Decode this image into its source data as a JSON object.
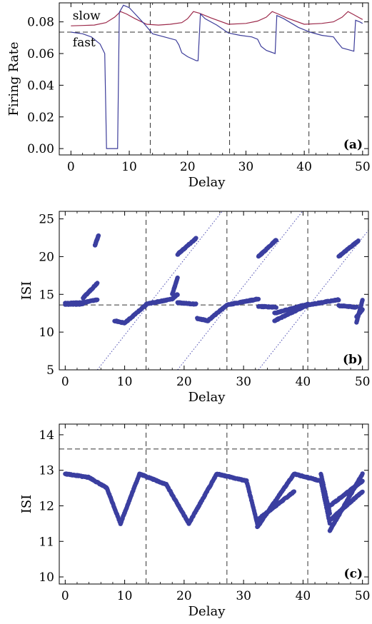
{
  "chart_data": [
    {
      "type": "line",
      "panel_label": "(a)",
      "xlabel": "Delay",
      "ylabel": "Firing  Rate",
      "xlim": [
        -2,
        51
      ],
      "ylim": [
        -0.004,
        0.092
      ],
      "xticks": [
        0,
        10,
        20,
        30,
        40,
        50
      ],
      "yticks": [
        0.0,
        0.02,
        0.04,
        0.06,
        0.08
      ],
      "ytick_labels": [
        "0.00",
        "0.02",
        "0.04",
        "0.06",
        "0.08"
      ],
      "hline": 0.0735,
      "vlines": [
        13.6,
        27.2,
        40.8
      ],
      "annotations": [
        {
          "text": "slow",
          "x": 0.3,
          "y": 0.0815
        },
        {
          "text": "fast",
          "x": 0.3,
          "y": 0.0645
        }
      ],
      "series": [
        {
          "name": "slow",
          "color": "#9c2a4b",
          "points": [
            [
              0,
              0.0775
            ],
            [
              2,
              0.0777
            ],
            [
              4,
              0.078
            ],
            [
              6,
              0.0795
            ],
            [
              7.5,
              0.083
            ],
            [
              8.5,
              0.0865
            ],
            [
              9.5,
              0.085
            ],
            [
              11,
              0.082
            ],
            [
              13,
              0.0785
            ],
            [
              15,
              0.078
            ],
            [
              17,
              0.0785
            ],
            [
              19,
              0.0795
            ],
            [
              20,
              0.082
            ],
            [
              21,
              0.0865
            ],
            [
              22,
              0.0855
            ],
            [
              24,
              0.0825
            ],
            [
              27,
              0.0785
            ],
            [
              30,
              0.079
            ],
            [
              32,
              0.0805
            ],
            [
              33.5,
              0.083
            ],
            [
              34.5,
              0.0865
            ],
            [
              35.5,
              0.085
            ],
            [
              37,
              0.0825
            ],
            [
              40,
              0.0785
            ],
            [
              43,
              0.079
            ],
            [
              45,
              0.08
            ],
            [
              46.5,
              0.083
            ],
            [
              47.5,
              0.0865
            ],
            [
              48.5,
              0.0845
            ],
            [
              49.5,
              0.0825
            ],
            [
              50,
              0.0815
            ]
          ]
        },
        {
          "name": "fast",
          "color": "#3d3d9a",
          "points": [
            [
              0,
              0.0735
            ],
            [
              2,
              0.0725
            ],
            [
              3.5,
              0.0705
            ],
            [
              5,
              0.066
            ],
            [
              5.8,
              0.06
            ],
            [
              6.1,
              0.0
            ],
            [
              8.0,
              0.0
            ],
            [
              8.3,
              0.086
            ],
            [
              9,
              0.0905
            ],
            [
              10,
              0.089
            ],
            [
              11,
              0.085
            ],
            [
              12.5,
              0.079
            ],
            [
              14,
              0.0725
            ],
            [
              16,
              0.0705
            ],
            [
              18,
              0.0685
            ],
            [
              18.5,
              0.0655
            ],
            [
              19,
              0.0605
            ],
            [
              20,
              0.058
            ],
            [
              21.5,
              0.0555
            ],
            [
              21.8,
              0.0555
            ],
            [
              22.2,
              0.085
            ],
            [
              23,
              0.082
            ],
            [
              25,
              0.078
            ],
            [
              27,
              0.073
            ],
            [
              29,
              0.0715
            ],
            [
              31,
              0.0705
            ],
            [
              32,
              0.069
            ],
            [
              32.6,
              0.0645
            ],
            [
              33.5,
              0.062
            ],
            [
              35,
              0.06
            ],
            [
              35.3,
              0.084
            ],
            [
              36.5,
              0.082
            ],
            [
              39,
              0.0765
            ],
            [
              41,
              0.0735
            ],
            [
              43,
              0.0715
            ],
            [
              45,
              0.0705
            ],
            [
              45.6,
              0.0675
            ],
            [
              46.5,
              0.0635
            ],
            [
              48,
              0.062
            ],
            [
              48.5,
              0.0615
            ],
            [
              48.8,
              0.081
            ],
            [
              49.5,
              0.08
            ],
            [
              50,
              0.079
            ]
          ]
        }
      ]
    },
    {
      "type": "scatter",
      "panel_label": "(b)",
      "xlabel": "Delay",
      "ylabel": "ISI",
      "xlim": [
        -1,
        51
      ],
      "ylim": [
        5,
        26
      ],
      "xticks": [
        0,
        10,
        20,
        30,
        40,
        50
      ],
      "yticks": [
        5,
        10,
        15,
        20,
        25
      ],
      "hline": 13.6,
      "vlines": [
        13.6,
        27.2,
        40.8
      ],
      "diagonals": [
        [
          5.4,
          13.6
        ],
        [
          18.9,
          13.6
        ],
        [
          32.5,
          13.6
        ]
      ],
      "marker_color": "#3b3fa0",
      "segments": [
        {
          "x0": 0,
          "x1": 3,
          "pts": [
            [
              13.7,
              13.7
            ],
            [
              13.8,
              13.9
            ]
          ]
        },
        {
          "x0": 3,
          "x1": 5.4,
          "pts": [
            [
              13.9,
              14.3
            ],
            [
              14.5,
              16.5
            ]
          ]
        },
        {
          "x0": 5.0,
          "x1": 5.6,
          "pts": [
            [
              21.5,
              22.8
            ]
          ]
        },
        {
          "x0": 8.3,
          "x1": 10,
          "pts": [
            [
              11.5,
              11.2
            ]
          ]
        },
        {
          "x0": 10,
          "x1": 13.6,
          "pts": [
            [
              11.2,
              13.6
            ]
          ]
        },
        {
          "x0": 13.6,
          "x1": 18,
          "pts": [
            [
              13.7,
              14.4
            ]
          ]
        },
        {
          "x0": 18,
          "x1": 18.9,
          "pts": [
            [
              14.4,
              15.0
            ],
            [
              15.0,
              17.2
            ]
          ]
        },
        {
          "x0": 18.9,
          "x1": 22,
          "pts": [
            [
              20.3,
              22.4
            ]
          ]
        },
        {
          "x0": 18.9,
          "x1": 22,
          "pts": [
            [
              13.9,
              13.7
            ]
          ]
        },
        {
          "x0": 22.2,
          "x1": 24,
          "pts": [
            [
              11.8,
              11.5
            ]
          ]
        },
        {
          "x0": 24,
          "x1": 27.2,
          "pts": [
            [
              11.5,
              13.6
            ]
          ]
        },
        {
          "x0": 27.2,
          "x1": 32.5,
          "pts": [
            [
              13.6,
              14.4
            ]
          ]
        },
        {
          "x0": 32.5,
          "x1": 35.5,
          "pts": [
            [
              20.0,
              22.2
            ]
          ]
        },
        {
          "x0": 32.5,
          "x1": 35.5,
          "pts": [
            [
              13.4,
              13.3
            ]
          ]
        },
        {
          "x0": 35.2,
          "x1": 40.8,
          "pts": [
            [
              11.5,
              13.6
            ],
            [
              12.5,
              13.7
            ]
          ]
        },
        {
          "x0": 40.8,
          "x1": 46,
          "pts": [
            [
              13.6,
              14.3
            ]
          ]
        },
        {
          "x0": 46,
          "x1": 49.3,
          "pts": [
            [
              20.0,
              22.1
            ]
          ]
        },
        {
          "x0": 46,
          "x1": 49,
          "pts": [
            [
              13.5,
              13.3
            ]
          ]
        },
        {
          "x0": 49,
          "x1": 50,
          "pts": [
            [
              11.3,
              14.2
            ],
            [
              12.0,
              13.0
            ]
          ]
        }
      ]
    },
    {
      "type": "scatter",
      "panel_label": "(c)",
      "xlabel": "Delay",
      "ylabel": "ISI",
      "xlim": [
        -1,
        51
      ],
      "ylim": [
        9.8,
        14.3
      ],
      "xticks": [
        0,
        10,
        20,
        30,
        40,
        50
      ],
      "yticks": [
        10,
        11,
        12,
        13,
        14
      ],
      "hline": 13.6,
      "vlines": [
        13.6,
        27.2,
        40.8
      ],
      "marker_color": "#3b3fa0",
      "segments": [
        {
          "x0": 0,
          "x1": 4,
          "pts": [
            [
              12.9,
              12.8
            ]
          ]
        },
        {
          "x0": 4,
          "x1": 7,
          "pts": [
            [
              12.8,
              12.5
            ]
          ]
        },
        {
          "x0": 7,
          "x1": 9.3,
          "pts": [
            [
              12.5,
              11.5
            ]
          ]
        },
        {
          "x0": 9.3,
          "x1": 12.5,
          "pts": [
            [
              11.5,
              12.9
            ]
          ]
        },
        {
          "x0": 12.5,
          "x1": 17,
          "pts": [
            [
              12.9,
              12.6
            ]
          ]
        },
        {
          "x0": 17,
          "x1": 20.8,
          "pts": [
            [
              12.6,
              11.5
            ]
          ]
        },
        {
          "x0": 20.8,
          "x1": 25.5,
          "pts": [
            [
              11.5,
              12.9
            ]
          ]
        },
        {
          "x0": 25.5,
          "x1": 30.5,
          "pts": [
            [
              12.9,
              12.7
            ]
          ]
        },
        {
          "x0": 30.5,
          "x1": 32.3,
          "pts": [
            [
              12.7,
              11.5
            ]
          ]
        },
        {
          "x0": 32.3,
          "x1": 38.5,
          "pts": [
            [
              11.4,
              12.9
            ],
            [
              11.6,
              12.4
            ]
          ]
        },
        {
          "x0": 38.5,
          "x1": 43,
          "pts": [
            [
              12.9,
              12.7
            ]
          ]
        },
        {
          "x0": 43,
          "x1": 44.5,
          "pts": [
            [
              12.7,
              11.5
            ],
            [
              12.9,
              11.8
            ]
          ]
        },
        {
          "x0": 44.5,
          "x1": 50,
          "pts": [
            [
              11.3,
              12.9
            ],
            [
              12.0,
              12.7
            ],
            [
              11.6,
              12.4
            ]
          ]
        }
      ]
    }
  ]
}
